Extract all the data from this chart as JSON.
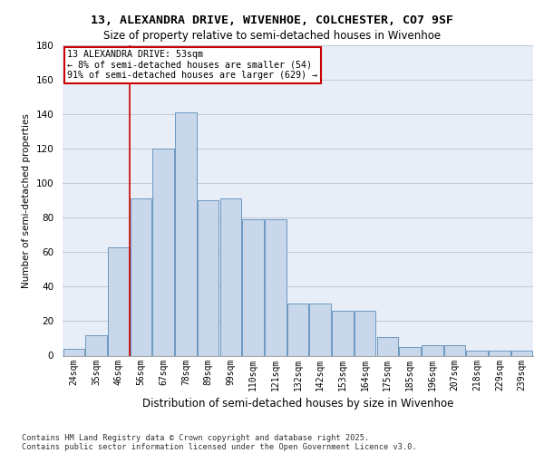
{
  "title_line1": "13, ALEXANDRA DRIVE, WIVENHOE, COLCHESTER, CO7 9SF",
  "title_line2": "Size of property relative to semi-detached houses in Wivenhoe",
  "xlabel": "Distribution of semi-detached houses by size in Wivenhoe",
  "ylabel": "Number of semi-detached properties",
  "categories": [
    "24sqm",
    "35sqm",
    "46sqm",
    "56sqm",
    "67sqm",
    "78sqm",
    "89sqm",
    "99sqm",
    "110sqm",
    "121sqm",
    "132sqm",
    "142sqm",
    "153sqm",
    "164sqm",
    "175sqm",
    "185sqm",
    "196sqm",
    "207sqm",
    "218sqm",
    "229sqm",
    "239sqm"
  ],
  "values": [
    4,
    12,
    63,
    91,
    120,
    141,
    90,
    91,
    79,
    79,
    30,
    30,
    26,
    26,
    11,
    5,
    6,
    6,
    3,
    3,
    3
  ],
  "bar_color": "#c8d8ea",
  "bar_edge_color": "#5b8db8",
  "pct_smaller": "8%",
  "pct_smaller_count": 54,
  "pct_larger": "91%",
  "pct_larger_count": 629,
  "vline_color": "#cc0000",
  "annotation_box_color": "#cc0000",
  "footer_line1": "Contains HM Land Registry data © Crown copyright and database right 2025.",
  "footer_line2": "Contains public sector information licensed under the Open Government Licence v3.0.",
  "background_color": "#e8eef8",
  "grid_color": "#c0c8d8",
  "ylim": [
    0,
    180
  ],
  "yticks": [
    0,
    20,
    40,
    60,
    80,
    100,
    120,
    140,
    160,
    180
  ]
}
